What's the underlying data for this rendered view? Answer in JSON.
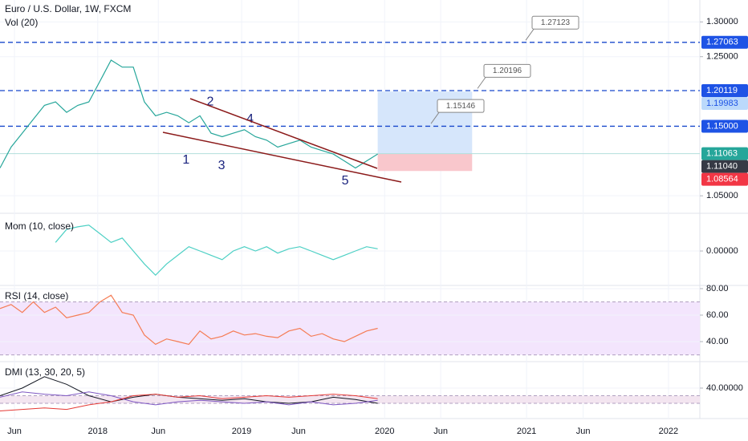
{
  "chart_data": [
    {
      "type": "line",
      "title": "Euro / U.S. Dollar, 1W, FXCM",
      "subtitle": "Vol (20)",
      "color": "#26a69a",
      "x": [
        0,
        4,
        8,
        12,
        16,
        20,
        24,
        28,
        32,
        36,
        40,
        44,
        48,
        52,
        56,
        60,
        64,
        68,
        72,
        76,
        80,
        84,
        88,
        92,
        96,
        100,
        104,
        108,
        112,
        116,
        120,
        124,
        128,
        132,
        136
      ],
      "values": [
        1.09,
        1.12,
        1.14,
        1.16,
        1.18,
        1.185,
        1.17,
        1.18,
        1.185,
        1.215,
        1.245,
        1.235,
        1.235,
        1.185,
        1.165,
        1.17,
        1.165,
        1.155,
        1.165,
        1.14,
        1.135,
        1.14,
        1.145,
        1.135,
        1.13,
        1.12,
        1.125,
        1.13,
        1.12,
        1.115,
        1.11,
        1.1,
        1.09,
        1.1,
        1.11
      ],
      "xlim": [
        0,
        252
      ],
      "ylim": [
        1.026,
        1.3315
      ],
      "yticks": [
        {
          "value": 1.05,
          "label": "1.05000"
        },
        {
          "value": 1.25,
          "label": "1.25000"
        },
        {
          "value": 1.3,
          "label": "1.30000"
        }
      ],
      "levels": [
        {
          "value": 1.27063,
          "label": "1.27063"
        },
        {
          "value": 1.20119,
          "label": "1.20119"
        },
        {
          "value": 1.15,
          "label": "1.15000"
        }
      ],
      "callouts": [
        {
          "value": 1.27123,
          "label": "1.27123"
        },
        {
          "value": 1.20196,
          "label": "1.20196"
        },
        {
          "value": 1.15146,
          "label": "1.15146"
        }
      ],
      "badges": [
        {
          "value": 1.27063,
          "label": "1.27063",
          "color": "#1e53e5"
        },
        {
          "value": 1.20119,
          "label": "1.20119",
          "color": "#1e53e5"
        },
        {
          "value": 1.19983,
          "label": "1.19983",
          "color": "#bbd9fb"
        },
        {
          "value": 1.15,
          "label": "1.15000",
          "color": "#1e53e5"
        },
        {
          "value": 1.11063,
          "label": "1.11063",
          "color": "#26a69a"
        },
        {
          "value": 1.1104,
          "label": "1.11040",
          "color": "#363a45"
        },
        {
          "value": 1.08564,
          "label": "1.08564",
          "color": "#f23645"
        }
      ],
      "position_x": [
        136,
        170
      ],
      "wave_labels": [
        "1",
        "2",
        "3",
        "4",
        "5"
      ]
    },
    {
      "type": "line",
      "title": "Mom (10, close)",
      "color": "#4dd0c4",
      "x": [
        20,
        24,
        28,
        32,
        36,
        40,
        44,
        48,
        52,
        56,
        60,
        64,
        68,
        72,
        76,
        80,
        84,
        88,
        92,
        96,
        100,
        104,
        108,
        112,
        116,
        120,
        124,
        128,
        132,
        136
      ],
      "values": [
        0.02,
        0.05,
        0.056,
        0.06,
        0.04,
        0.02,
        0.03,
        0.0,
        -0.03,
        -0.056,
        -0.03,
        -0.01,
        0.01,
        0.0,
        -0.01,
        -0.02,
        0.0,
        0.01,
        0.0,
        0.01,
        -0.005,
        0.005,
        0.01,
        0.0,
        -0.01,
        -0.02,
        -0.01,
        0.0,
        0.01,
        0.005
      ],
      "xlim": [
        0,
        252
      ],
      "ylim": [
        -0.078,
        0.08
      ],
      "yticks": [
        {
          "value": 0,
          "label": "0.00000"
        }
      ]
    },
    {
      "type": "line",
      "title": "RSI (14, close)",
      "color": "#f57c55",
      "x": [
        0,
        4,
        8,
        12,
        16,
        20,
        24,
        28,
        32,
        36,
        40,
        44,
        48,
        52,
        56,
        60,
        64,
        68,
        72,
        76,
        80,
        84,
        88,
        92,
        96,
        100,
        104,
        108,
        112,
        116,
        120,
        124,
        128,
        132,
        136
      ],
      "values": [
        65,
        68,
        62,
        70,
        62,
        66,
        58,
        60,
        62,
        70,
        75,
        62,
        60,
        45,
        38,
        42,
        40,
        38,
        48,
        42,
        44,
        48,
        45,
        46,
        44,
        43,
        48,
        50,
        44,
        46,
        42,
        40,
        44,
        48,
        50
      ],
      "xlim": [
        0,
        252
      ],
      "ylim": [
        25.5,
        81.8
      ],
      "yticks": [
        {
          "value": 80,
          "label": "80.00"
        },
        {
          "value": 60,
          "label": "60.00"
        },
        {
          "value": 40,
          "label": "40.00"
        }
      ],
      "band": [
        30,
        70
      ],
      "band_color": "#f3e5fd"
    },
    {
      "type": "multiline",
      "title": "DMI (13, 30, 20, 5)",
      "x": [
        0,
        8,
        16,
        24,
        32,
        40,
        48,
        56,
        64,
        72,
        80,
        88,
        96,
        104,
        112,
        120,
        128,
        136
      ],
      "series": [
        {
          "color": "#131722",
          "values": [
            30,
            40,
            55,
            45,
            30,
            22,
            28,
            32,
            28,
            26,
            24,
            26,
            22,
            20,
            22,
            28,
            25,
            20
          ]
        },
        {
          "color": "#7e57c2",
          "values": [
            28,
            35,
            32,
            30,
            35,
            30,
            22,
            18,
            22,
            24,
            22,
            20,
            22,
            18,
            22,
            18,
            20,
            24
          ]
        },
        {
          "color": "#e53935",
          "values": [
            10,
            12,
            14,
            12,
            18,
            22,
            30,
            32,
            28,
            30,
            26,
            28,
            30,
            28,
            30,
            32,
            30,
            26
          ]
        }
      ],
      "xlim": [
        0,
        252
      ],
      "ylim": [
        0,
        73.7
      ],
      "yticks": [
        {
          "value": 40,
          "label": "40.00000"
        }
      ],
      "band": [
        20,
        30
      ],
      "band_color": "#f3e5f0",
      "xticks": [
        {
          "value": 5.2,
          "label": "Jun"
        },
        {
          "value": 35.2,
          "label": "2018"
        },
        {
          "value": 57,
          "label": "Jun"
        },
        {
          "value": 87,
          "label": "2019"
        },
        {
          "value": 107.5,
          "label": "Jun"
        },
        {
          "value": 138.5,
          "label": "2020"
        },
        {
          "value": 158.7,
          "label": "Jun"
        },
        {
          "value": 189.6,
          "label": "2021"
        },
        {
          "value": 210,
          "label": "Jun"
        },
        {
          "value": 240.7,
          "label": "2022"
        }
      ]
    }
  ]
}
